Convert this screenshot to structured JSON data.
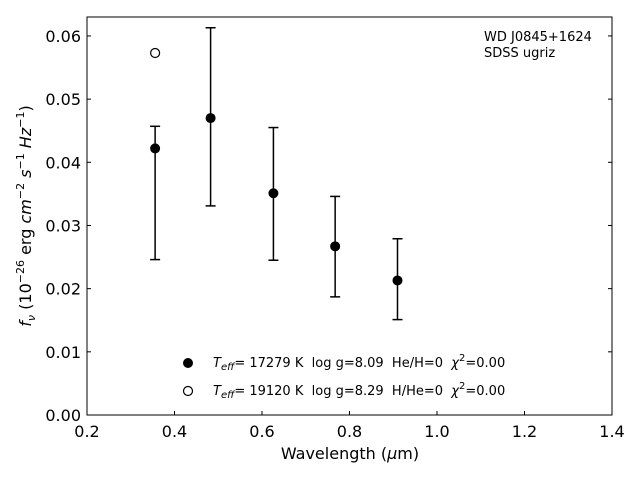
{
  "chart_data": {
    "type": "scatter",
    "xlabel": {
      "pre": "Wavelength (",
      "sym": "μ",
      "post": "m)"
    },
    "ylabel": {
      "f": "f",
      "nu": "ν",
      "a": " (10",
      "e1": "−26",
      "b": " erg ",
      "cm": "cm",
      "e2": "−2",
      "s": " s",
      "e3": "−1",
      "hz": " Hz",
      "e4": "−1",
      "c": ")"
    },
    "xlim": [
      0.2,
      1.4
    ],
    "ylim": [
      0.0,
      0.063
    ],
    "xticks": [
      "0.2",
      "0.4",
      "0.6",
      "0.8",
      "1.0",
      "1.2",
      "1.4"
    ],
    "yticks": [
      "0.00",
      "0.01",
      "0.02",
      "0.03",
      "0.04",
      "0.05",
      "0.06"
    ],
    "grid": false,
    "annotation": [
      "WD J0845+1624",
      "SDSS ugriz"
    ],
    "series": [
      {
        "marker": "filled-circle",
        "color": "#000000",
        "x": [
          0.3557,
          0.4825,
          0.6261,
          0.7672,
          0.9097
        ],
        "y": [
          0.0422,
          0.047,
          0.0351,
          0.0267,
          0.0213
        ]
      },
      {
        "marker": "open-circle",
        "color": "#000000",
        "x": [
          0.3557
        ],
        "y": [
          0.0573
        ]
      }
    ],
    "errorbars": [
      {
        "x": 0.3557,
        "low": 0.0246,
        "high": 0.0457
      },
      {
        "x": 0.4825,
        "low": 0.0331,
        "high": 0.0613
      },
      {
        "x": 0.6261,
        "low": 0.0245,
        "high": 0.0455
      },
      {
        "x": 0.7672,
        "low": 0.0187,
        "high": 0.0346
      },
      {
        "x": 0.9097,
        "low": 0.0151,
        "high": 0.0279
      }
    ],
    "legend": {
      "placement": "lower-center",
      "entries": [
        {
          "marker": "filled-circle",
          "t": "T",
          "sub": "eff",
          "rest": "= 17279 K  log g=8.09  He/H=0  ",
          "chi": "χ",
          "sup": "2",
          "chi_rest": "=0.00"
        },
        {
          "marker": "open-circle",
          "t": "T",
          "sub": "eff",
          "rest": "= 19120 K  log g=8.29  H/He=0  ",
          "chi": "χ",
          "sup": "2",
          "chi_rest": "=0.00"
        }
      ]
    }
  }
}
